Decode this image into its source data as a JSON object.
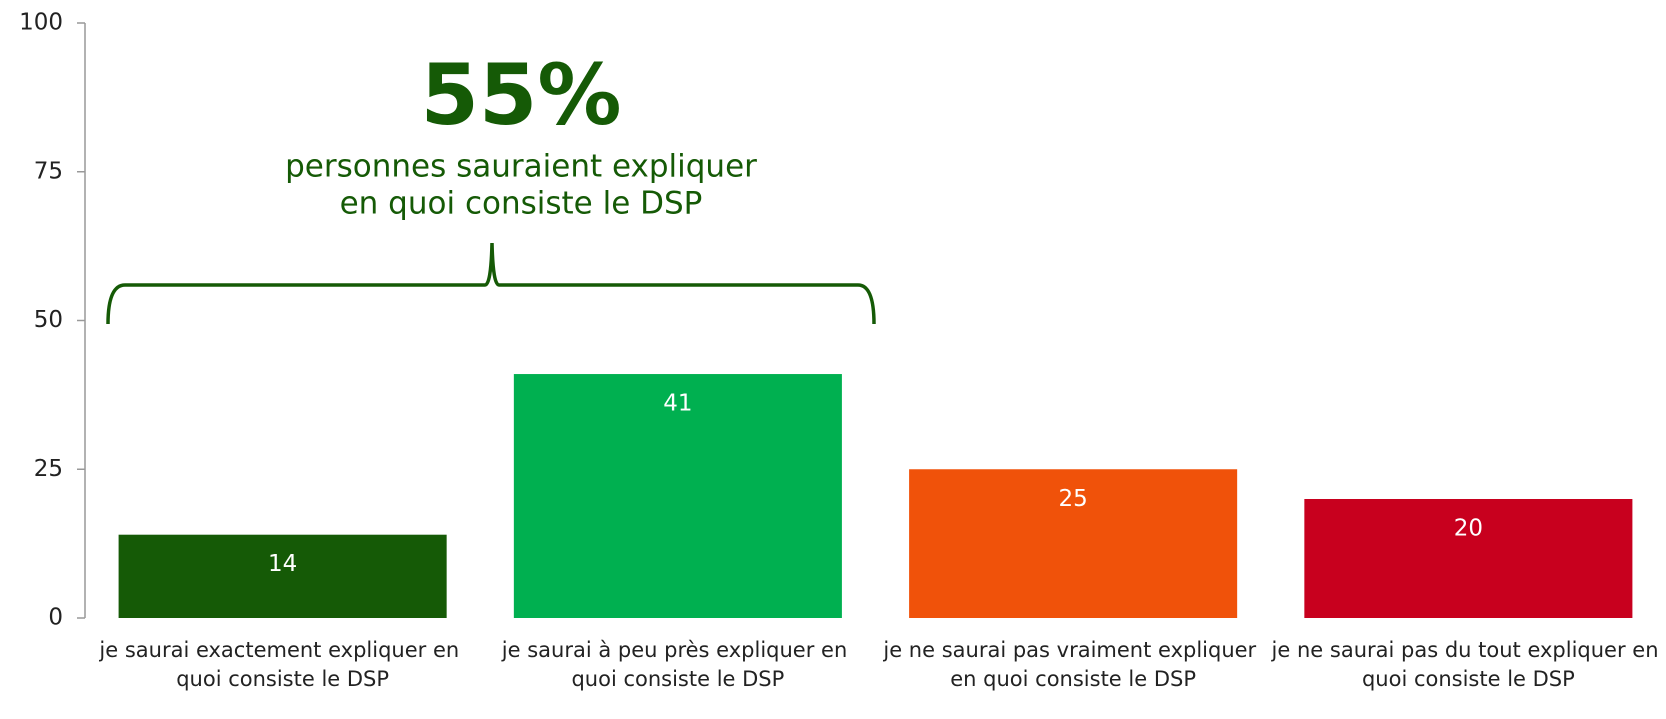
{
  "chart_data": {
    "type": "bar",
    "categories": [
      "je saurai exactement expliquer en quoi consiste le DSP",
      "je saurai à peu près expliquer en quoi consiste le DSP",
      "je ne saurai pas vraiment expliquer en quoi consiste le DSP",
      "je ne saurai pas du tout expliquer en quoi consiste le DSP"
    ],
    "values": [
      14,
      41,
      25,
      20
    ],
    "colors": [
      "#155a06",
      "#00b050",
      "#f0520a",
      "#c8001e"
    ],
    "ylim": [
      0,
      100
    ],
    "yticks": [
      0,
      25,
      50,
      75,
      100
    ],
    "grid": false,
    "annotation": {
      "headline": "55%",
      "lines": [
        "personnes sauraient expliquer",
        "en quoi consiste le DSP"
      ],
      "color": "#155a06"
    }
  }
}
